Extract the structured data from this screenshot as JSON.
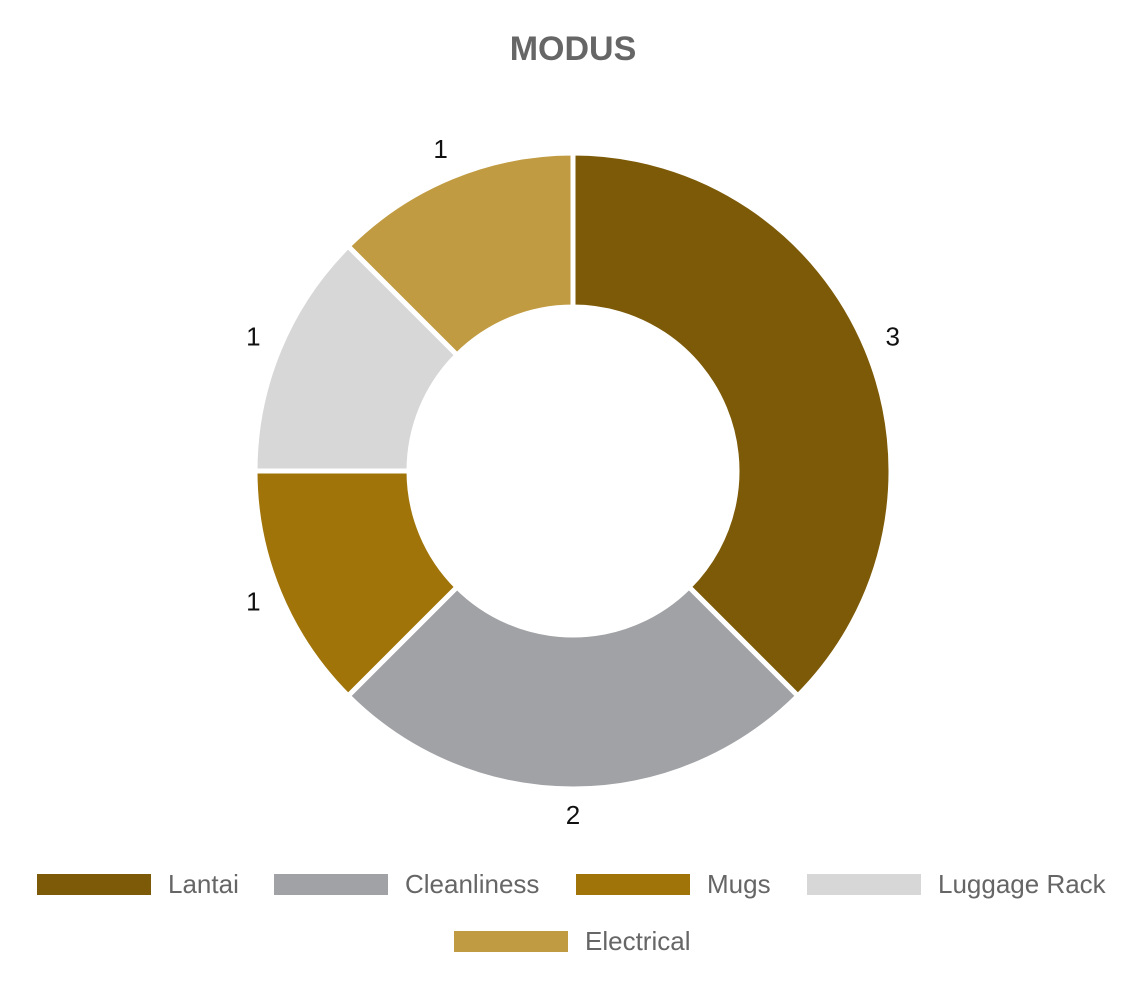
{
  "chart_data": {
    "type": "pie",
    "variant": "donut",
    "title": "MODUS",
    "categories": [
      "Lantai",
      "Cleanliness",
      "Mugs",
      "Luggage Rack",
      "Electrical"
    ],
    "values": [
      3,
      2,
      1,
      1,
      1
    ],
    "colors": [
      "#7d5a07",
      "#a1a2a6",
      "#a07409",
      "#d7d7d7",
      "#c19b41"
    ],
    "legend_position": "bottom"
  }
}
